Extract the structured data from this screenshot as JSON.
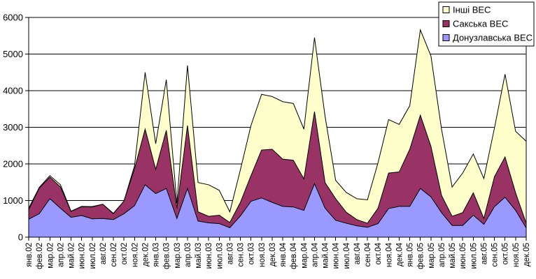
{
  "chart_data": {
    "type": "area",
    "stacked": true,
    "title": "",
    "xlabel": "",
    "ylabel": "",
    "ylim": [
      0,
      6000
    ],
    "y_ticks": [
      0,
      1000,
      2000,
      3000,
      4000,
      5000,
      6000
    ],
    "grid": true,
    "legend_position": "top-right",
    "categories": [
      "янв.02",
      "фев.02",
      "мар.02",
      "апр.02",
      "май.02",
      "июн.02",
      "июл.02",
      "авг.02",
      "сен.02",
      "окт.02",
      "ноя.02",
      "дек.02",
      "янв.03",
      "фев.03",
      "мар.03",
      "апр.03",
      "май.03",
      "июн.03",
      "июл.03",
      "авг.03",
      "сен.03",
      "окт.03",
      "ноя.03",
      "дек.03",
      "янв.04",
      "фев.04",
      "мар.04",
      "апр.04",
      "май.04",
      "июн.04",
      "июл.04",
      "авг.04",
      "сен.04",
      "окт.04",
      "ноя.04",
      "дек.04",
      "янв.05",
      "фев.05",
      "мар.05",
      "апр.05",
      "май.05",
      "июн.05",
      "июл.05",
      "авг.05",
      "сен.05",
      "окт.05",
      "ноя.05",
      "дек.05"
    ],
    "series": [
      {
        "name": "Донузлавська ВЕС",
        "color": "#9999FF",
        "values": [
          490,
          640,
          1050,
          790,
          540,
          590,
          500,
          510,
          480,
          640,
          860,
          1430,
          1190,
          1330,
          510,
          1330,
          440,
          390,
          370,
          260,
          580,
          980,
          1070,
          950,
          840,
          825,
          730,
          1460,
          790,
          460,
          380,
          310,
          270,
          370,
          780,
          840,
          840,
          1330,
          1100,
          670,
          320,
          320,
          600,
          350,
          830,
          1090,
          730,
          250
        ]
      },
      {
        "name": "Сакська ВЕС",
        "color": "#993366",
        "values": [
          260,
          700,
          590,
          580,
          160,
          240,
          325,
          390,
          160,
          345,
          1010,
          1520,
          660,
          1590,
          280,
          1720,
          250,
          180,
          230,
          140,
          370,
          700,
          1310,
          1450,
          1290,
          1275,
          860,
          1970,
          700,
          590,
          300,
          170,
          110,
          420,
          970,
          940,
          1560,
          2000,
          1380,
          470,
          250,
          350,
          610,
          160,
          820,
          1100,
          480,
          130
        ]
      },
      {
        "name": "Інші ВЕС",
        "color": "#FFFFCC",
        "values": [
          40,
          20,
          40,
          60,
          10,
          10,
          10,
          0,
          10,
          0,
          80,
          1550,
          700,
          1380,
          130,
          1640,
          800,
          860,
          680,
          290,
          890,
          1370,
          1520,
          1440,
          1570,
          1550,
          1360,
          2020,
          1810,
          500,
          540,
          570,
          640,
          1240,
          1460,
          1300,
          1190,
          2330,
          2470,
          1810,
          800,
          1080,
          1060,
          1090,
          1330,
          2260,
          1680,
          2240
        ]
      }
    ],
    "legend": [
      "Інші ВЕС",
      "Сакська ВЕС",
      "Донузлавська ВЕС"
    ],
    "colors": {
      "inshi_ves": "#FFFFCC",
      "sakska_ves": "#993366",
      "donuzlavska_ves": "#9999FF",
      "line": "#000000",
      "background": "#FFFFFF"
    }
  }
}
